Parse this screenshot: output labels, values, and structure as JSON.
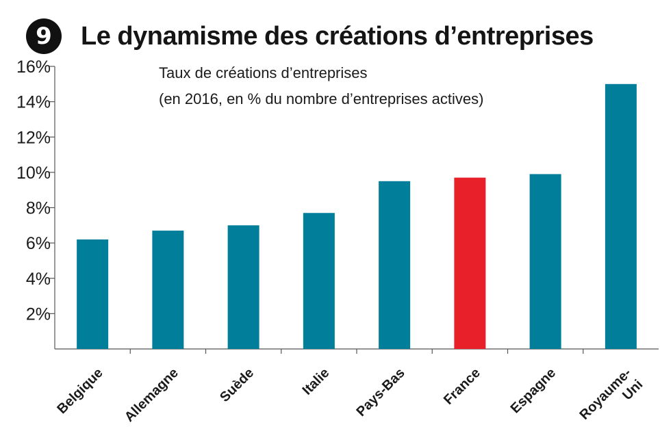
{
  "header": {
    "badge": "9",
    "title": "Le dynamisme des créations d’entreprises"
  },
  "chart_data": {
    "type": "bar",
    "title": "Le dynamisme des créations d’entreprises",
    "subtitle_line1": "Taux de créations d’entreprises",
    "subtitle_line2": "(en 2016, en % du nombre d’entreprises actives)",
    "categories": [
      "Belgique",
      "Allemagne",
      "Suède",
      "Italie",
      "Pays-Bas",
      "France",
      "Espagne",
      "Royaume-Uni"
    ],
    "category_label_lines": [
      [
        "Belgique"
      ],
      [
        "Allemagne"
      ],
      [
        "Suède"
      ],
      [
        "Italie"
      ],
      [
        "Pays-Bas"
      ],
      [
        "France"
      ],
      [
        "Espagne"
      ],
      [
        "Royaume-",
        "Uni"
      ]
    ],
    "values": [
      6.2,
      6.7,
      7.0,
      7.7,
      9.5,
      9.7,
      9.9,
      15.0
    ],
    "ylim": [
      0,
      16
    ],
    "yticks": [
      2,
      4,
      6,
      8,
      10,
      12,
      14,
      16
    ],
    "ytick_labels": [
      "2%",
      "4%",
      "6%",
      "8%",
      "10%",
      "12%",
      "14%",
      "16%"
    ],
    "xlabel": "",
    "ylabel": "",
    "bar_color": "#007e9a",
    "highlight_category": "France",
    "highlight_color": "#e8202a",
    "grid": false
  }
}
